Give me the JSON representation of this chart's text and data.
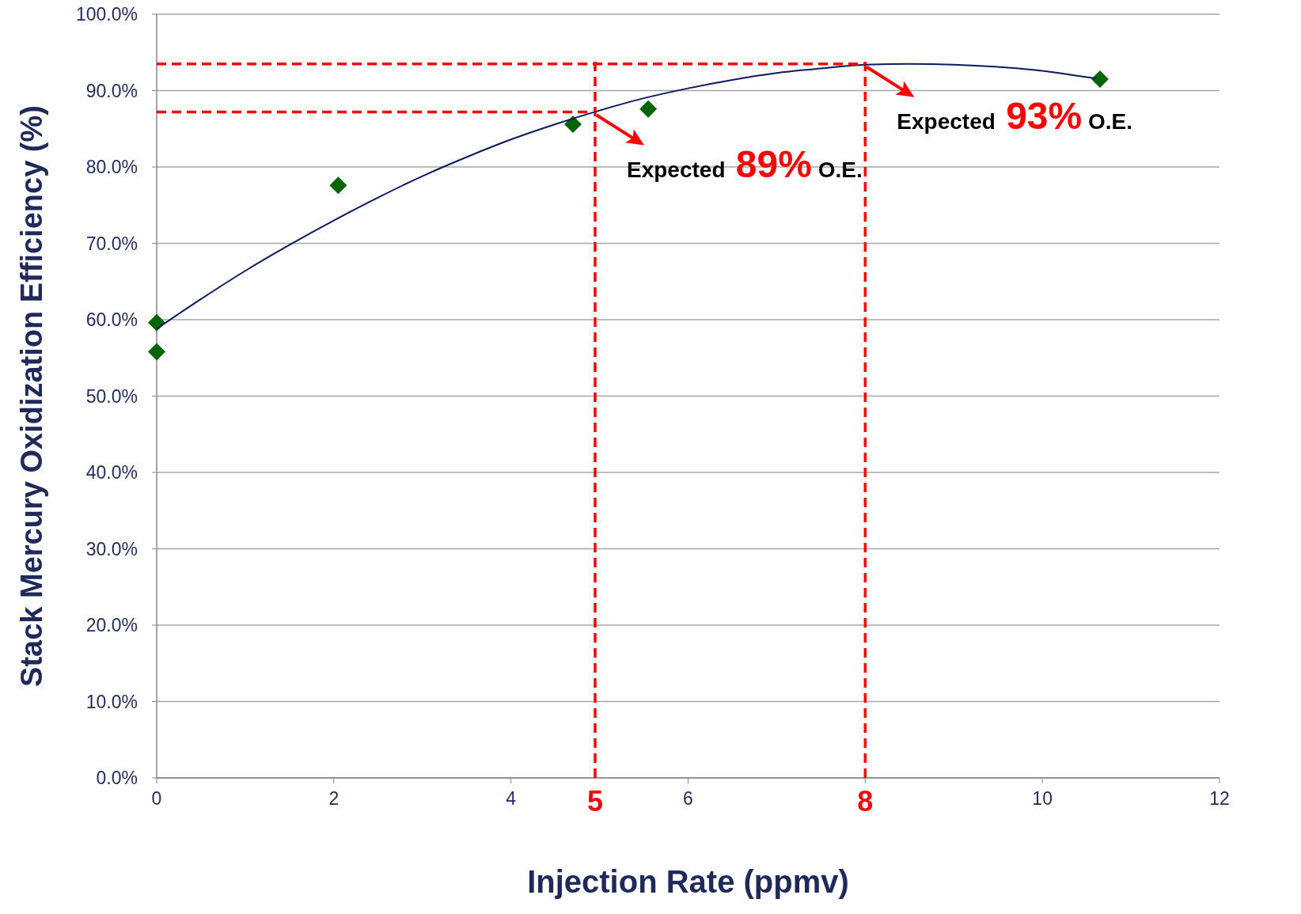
{
  "chart_data": {
    "type": "scatter",
    "xlabel": "Injection Rate (ppmv)",
    "ylabel": "Stack Mercury Oxidization Efficiency (%)",
    "xlim": [
      0,
      12
    ],
    "xticks": [
      0,
      2,
      4,
      6,
      {
        "value": 8,
        "label": null
      },
      10,
      12
    ],
    "ylim": [
      0,
      100
    ],
    "yticks": [
      {
        "value": 0,
        "label": "0.0%"
      },
      {
        "value": 10,
        "label": "10.0%"
      },
      {
        "value": 20,
        "label": "20.0%"
      },
      {
        "value": 30,
        "label": "30.0%"
      },
      {
        "value": 40,
        "label": "40.0%"
      },
      {
        "value": 50,
        "label": "50.0%"
      },
      {
        "value": 60,
        "label": "60.0%"
      },
      {
        "value": 70,
        "label": "70.0%"
      },
      {
        "value": 80,
        "label": "80.0%"
      },
      {
        "value": 90,
        "label": "90.0%"
      },
      {
        "value": 100,
        "label": "100.0%"
      }
    ],
    "grid": "y",
    "series": [
      {
        "color": "#006400",
        "marker": "diamond",
        "x": [
          0,
          0,
          2.05,
          4.7,
          5.55,
          10.65
        ],
        "values": [
          59.6,
          55.8,
          77.6,
          85.6,
          87.6,
          91.5
        ]
      },
      {
        "type": "line",
        "color": "#0a1a5c",
        "marker": "none",
        "line_style": "solid",
        "x": [
          0,
          0.5,
          1,
          1.5,
          2,
          2.5,
          3,
          3.5,
          4,
          4.5,
          5,
          5.5,
          6,
          6.5,
          7,
          7.5,
          8,
          8.5,
          9,
          9.5,
          10,
          10.3,
          10.6
        ],
        "values": [
          58.8,
          62.7,
          66.4,
          69.8,
          73.0,
          76.0,
          78.8,
          81.3,
          83.6,
          85.6,
          87.4,
          89.0,
          90.3,
          91.4,
          92.3,
          92.9,
          93.4,
          93.5,
          93.4,
          93.1,
          92.6,
          92.1,
          91.6
        ]
      },
      {
        "type": "line",
        "color": "#ff0000",
        "marker": "none",
        "line_style": "dashed",
        "x": [
          0,
          4.9
        ],
        "values": [
          87.2,
          87.2
        ]
      },
      {
        "type": "line",
        "color": "#ff0000",
        "marker": "none",
        "line_style": "dashed",
        "x": [
          0,
          8
        ],
        "values": [
          93.5,
          93.5
        ]
      }
    ],
    "ref_lines": [
      {
        "axis": "x",
        "value": 4.95,
        "label": "5",
        "color": "#ff0000",
        "line_style": "dashed"
      },
      {
        "axis": "x",
        "value": 8,
        "label": "8",
        "color": "#ff0000",
        "line_style": "dashed"
      }
    ],
    "annotations": [
      "Expected 89% O.E.",
      "Expected 93% O.E."
    ]
  }
}
